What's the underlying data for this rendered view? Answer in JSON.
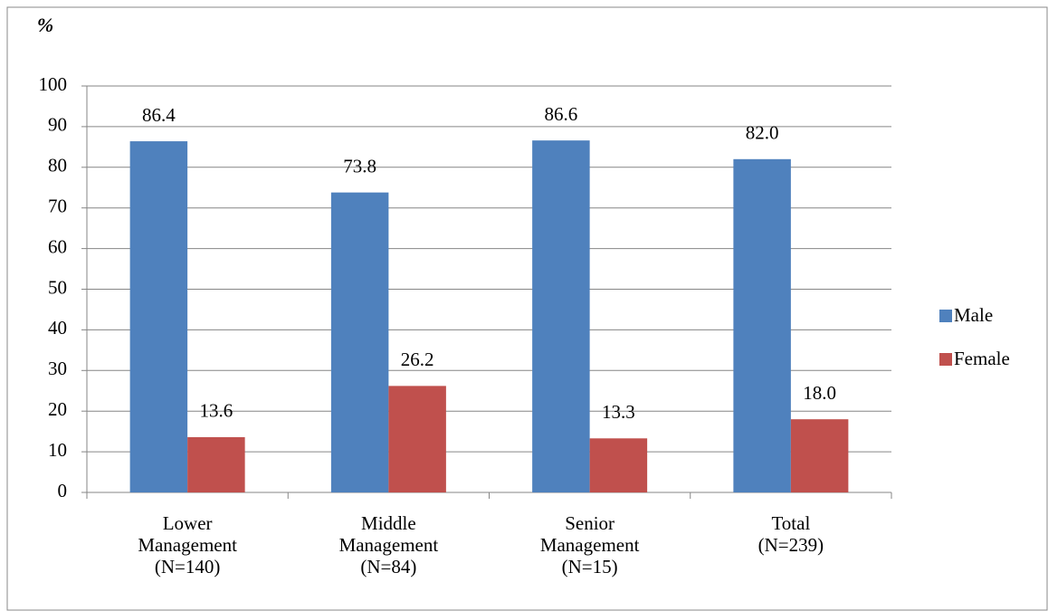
{
  "chart_data": {
    "type": "bar",
    "y_label": "%",
    "categories": [
      "Lower Management (N=140)",
      "Middle Management (N=84)",
      "Senior Management (N=15)",
      "Total (N=239)"
    ],
    "series": [
      {
        "name": "Male",
        "color": "#4f81bd",
        "values": [
          86.4,
          73.8,
          86.6,
          82
        ],
        "value_labels": [
          "86.4",
          "73.8",
          "86.6",
          "82.0"
        ]
      },
      {
        "name": "Female",
        "color": "#c0504d",
        "values": [
          13.6,
          26.2,
          13.3,
          18
        ],
        "value_labels": [
          "13.6",
          "26.2",
          "13.3",
          "18.0"
        ]
      }
    ],
    "ylim": [
      0,
      100
    ],
    "yticks": [
      0,
      10,
      20,
      30,
      40,
      50,
      60,
      70,
      80,
      90,
      100
    ],
    "grid": true,
    "legend": "right"
  }
}
